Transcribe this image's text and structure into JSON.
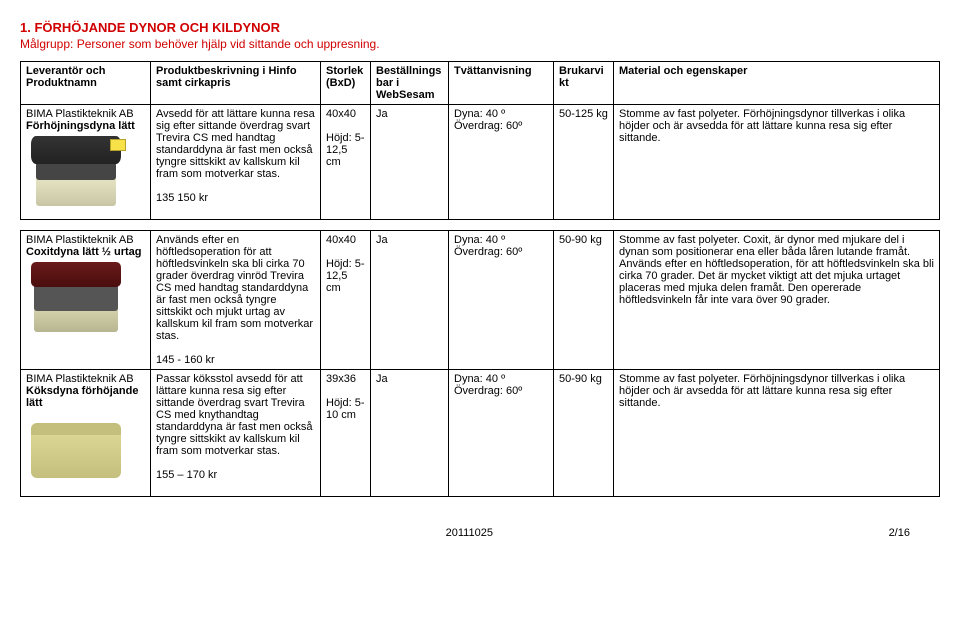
{
  "header": {
    "title": "1. FÖRHÖJANDE DYNOR OCH KILDYNOR",
    "subtitle": "Målgrupp: Personer som behöver hjälp vid sittande och uppresning."
  },
  "columns": {
    "c1": "Leverantör och Produktnamn",
    "c2": "Produktbeskrivning i Hinfo samt cirkapris",
    "c3": "Storlek (BxD)",
    "c4": "Beställningsbar i WebSesam",
    "c5": "Tvättanvisning",
    "c6": "Brukarvikt",
    "c7": "Material och egenskaper"
  },
  "rows": [
    {
      "prod_line1": "BIMA Plastikteknik AB",
      "prod_line2": "Förhöjningsdyna lätt",
      "desc": "Avsedd för att lättare kunna resa sig efter sittande överdrag svart Trevira CS med handtag standarddyna är fast men också tyngre sittskikt av kallskum kil fram som motverkar stas.",
      "price": "135 150 kr",
      "size_line1": "40x40",
      "size_line2": "Höjd: 5-12,5 cm",
      "order": "Ja",
      "wash_line1": "Dyna: 40 º",
      "wash_line2": "Överdrag: 60º",
      "weight": "50-125 kg",
      "material": "Stomme av fast polyeter. Förhöjningsdynor tillverkas i olika höjder och är avsedda för att lättare kunna resa sig efter sittande."
    },
    {
      "prod_line1": "BIMA Plastikteknik AB",
      "prod_line2": "Coxitdyna lätt ½ urtag",
      "desc": "Används efter en höftledsoperation för att höftledsvinkeln ska bli cirka 70 grader överdrag vinröd Trevira CS med handtag standarddyna är fast men också tyngre sittskikt och mjukt urtag av kallskum kil fram som motverkar stas.",
      "price": "145 - 160 kr",
      "size_line1": "40x40",
      "size_line2": "Höjd: 5-12,5 cm",
      "order": "Ja",
      "wash_line1": "Dyna: 40 º",
      "wash_line2": "Överdrag: 60º",
      "weight": "50-90 kg",
      "material": "Stomme av fast polyeter. Coxit, är dynor med mjukare del i dynan som positionerar ena eller båda låren lutande framåt. Används efter en höftledsoperation, för att höftledsvinkeln ska bli cirka 70 grader. Det är mycket viktigt att det mjuka urtaget placeras med mjuka delen framåt. Den opererade höftledsvinkeln får inte vara över 90 grader."
    },
    {
      "prod_line1": "BIMA Plastikteknik AB",
      "prod_line2": "Köksdyna förhöjande lätt",
      "desc": "Passar köksstol avsedd för att lättare kunna resa sig efter sittande överdrag svart Trevira CS med knythandtag standarddyna är fast men också tyngre sittskikt av kallskum kil fram som motverkar stas.",
      "price": "155 – 170  kr",
      "size_line1": "39x36",
      "size_line2": "Höjd: 5-10 cm",
      "order": "Ja",
      "wash_line1": "Dyna: 40 º",
      "wash_line2": "Överdrag: 60º",
      "weight": "50-90 kg",
      "material": "Stomme av fast polyeter. Förhöjningsdynor tillverkas i olika höjder och är avsedda för att lättare kunna resa sig efter sittande."
    }
  ],
  "footer": {
    "date": "20111025",
    "page": "2/16"
  }
}
